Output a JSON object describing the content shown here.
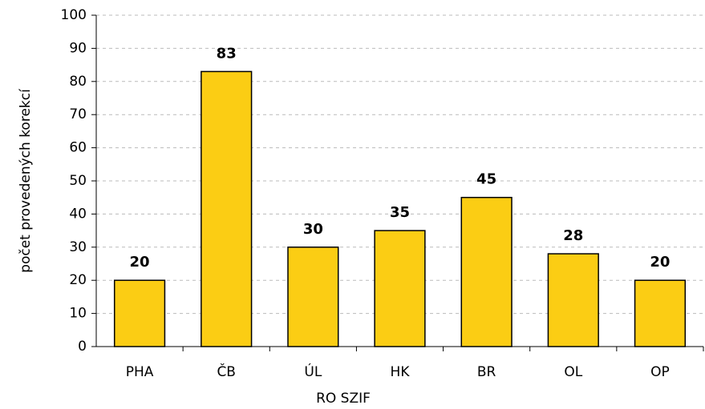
{
  "chart_data": {
    "type": "bar",
    "categories": [
      "PHA",
      "ČB",
      "ÚL",
      "HK",
      "BR",
      "OL",
      "OP"
    ],
    "values": [
      20,
      83,
      30,
      35,
      45,
      28,
      20
    ],
    "color": "#fbcd14",
    "ylim": [
      0,
      100
    ],
    "yticks": [
      0,
      10,
      20,
      30,
      40,
      50,
      60,
      70,
      80,
      90,
      100
    ],
    "grid": true,
    "x_label": "RO SZIF",
    "y_label": "počet provedených korekcí"
  }
}
